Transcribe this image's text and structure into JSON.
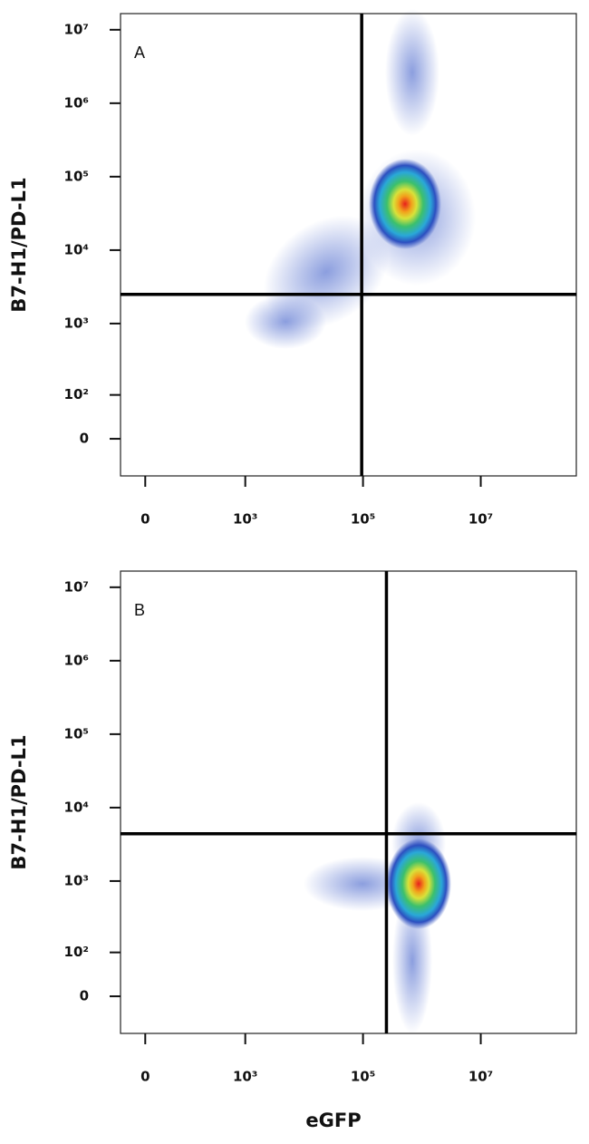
{
  "chart_data": [
    {
      "type": "scatter",
      "panel_label": "A",
      "y_label": "B7-H1/PD-L1",
      "xlim": [
        -45,
        420000000
      ],
      "ylim": [
        -78,
        16600000
      ],
      "xticks": [
        0,
        {
          "value": 1000,
          "label": "10³"
        },
        {
          "value": 100000,
          "label": "10⁵"
        },
        {
          "value": 10000000,
          "label": "10⁷"
        }
      ],
      "yticks": [
        0,
        {
          "value": 100,
          "label": "10²"
        },
        {
          "value": 1000,
          "label": "10³"
        },
        {
          "value": 10000,
          "label": "10⁴"
        },
        {
          "value": 100000,
          "label": "10⁵"
        },
        {
          "value": 1000000,
          "label": "10⁶"
        },
        {
          "value": 10000000,
          "label": "10⁷"
        }
      ],
      "gates": {
        "x": 95000,
        "y": 2500
      }
    },
    {
      "type": "scatter",
      "panel_label": "B",
      "y_label": "B7-H1/PD-L1",
      "x_label": "eGFP",
      "xlim": [
        -45,
        420000000
      ],
      "ylim": [
        -78,
        16600000
      ],
      "xticks": [
        0,
        {
          "value": 1000,
          "label": "10³"
        },
        {
          "value": 100000,
          "label": "10⁵"
        },
        {
          "value": 10000000,
          "label": "10⁷"
        }
      ],
      "yticks": [
        0,
        {
          "value": 100,
          "label": "10²"
        },
        {
          "value": 1000,
          "label": "10³"
        },
        {
          "value": 10000,
          "label": "10⁴"
        },
        {
          "value": 100000,
          "label": "10⁵"
        },
        {
          "value": 1000000,
          "label": "10⁶"
        },
        {
          "value": 10000000,
          "label": "10⁷"
        }
      ],
      "gates": {
        "x": 250000,
        "y": 4400
      }
    }
  ]
}
